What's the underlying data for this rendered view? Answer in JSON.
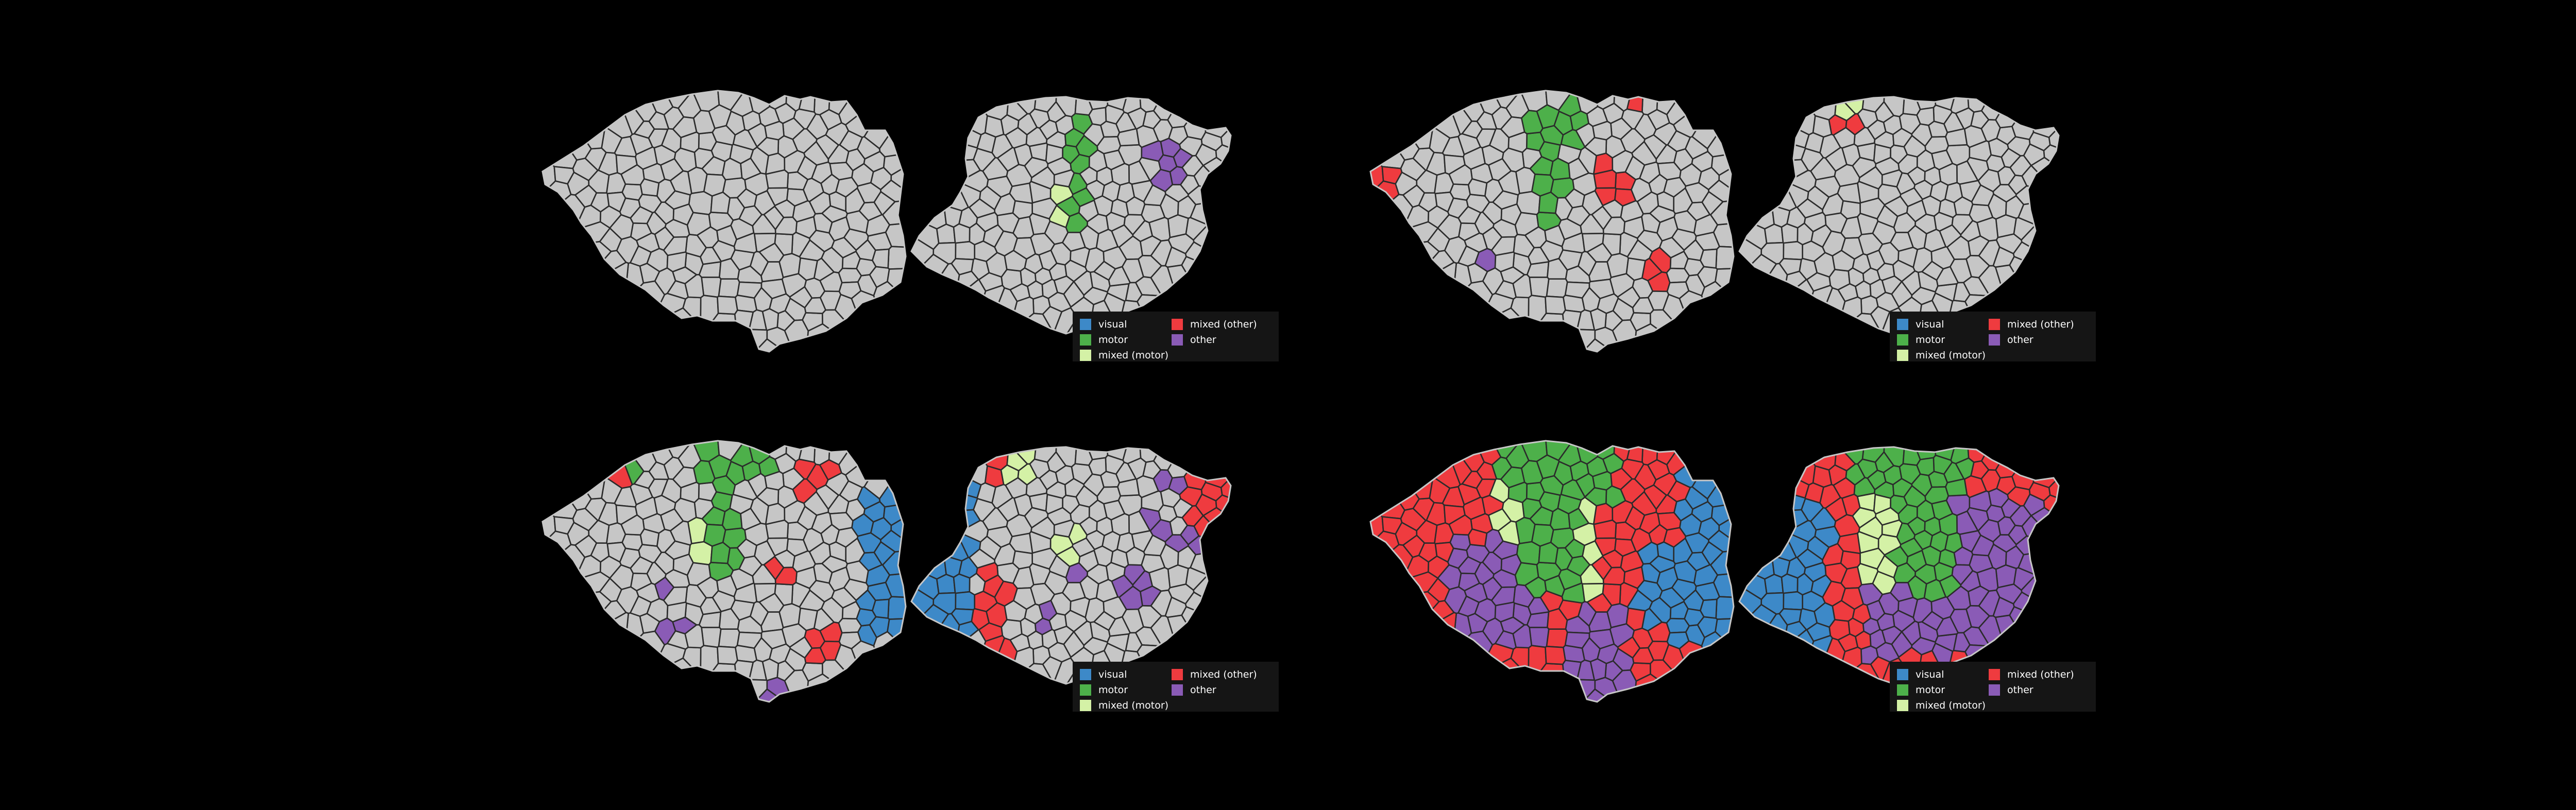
{
  "colors": {
    "background": "#000000",
    "cortex_gray": "#c6c6c6",
    "border_dark": "#2b2b2b",
    "legend_bg": "#151515"
  },
  "legend_labels": [
    {
      "label": "visual",
      "color": "#3d89c8"
    },
    {
      "label": "mixed (other)",
      "color": "#ef3b3f"
    },
    {
      "label": "motor",
      "color": "#4db04a"
    },
    {
      "label": "other",
      "color": "#8a5bb6"
    },
    {
      "label": "mixed (motor)",
      "color": "#d4f1a6"
    }
  ],
  "panels": [
    {
      "id": "top-left",
      "legend": true,
      "coloring": "sparse-motor"
    },
    {
      "id": "top-right",
      "legend": true,
      "coloring": "sparse-mixed"
    },
    {
      "id": "bottom-left",
      "legend": true,
      "coloring": "partial"
    },
    {
      "id": "bottom-right",
      "legend": true,
      "coloring": "full"
    }
  ]
}
